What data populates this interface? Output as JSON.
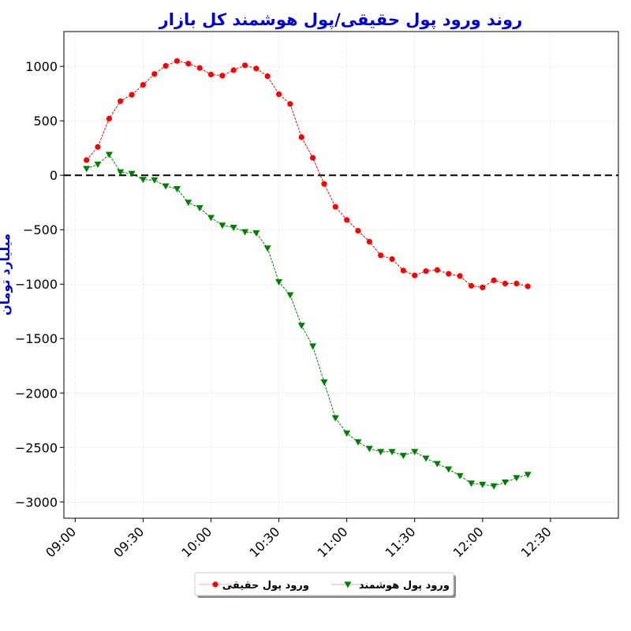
{
  "chart_data": {
    "type": "line",
    "title": "روند ورود پول حقیقی/پول هوشمند کل بازار",
    "xlabel": "",
    "ylabel": "میلیارد تومان",
    "x_start": "09:05",
    "x_step_minutes": 5,
    "xlim": [
      "08:55",
      "13:00"
    ],
    "ylim": [
      -3150,
      1320
    ],
    "x_ticks": [
      "09:00",
      "09:30",
      "10:00",
      "10:30",
      "11:00",
      "11:30",
      "12:00",
      "12:30"
    ],
    "y_ticks": [
      1000,
      500,
      0,
      -500,
      -1000,
      -1500,
      -2000,
      -2500,
      -3000
    ],
    "y_tick_labels": [
      "1000",
      "500",
      "0",
      "−500",
      "−1000",
      "−1500",
      "−2000",
      "−2500",
      "−3000"
    ],
    "grid": true,
    "zero_line": {
      "value": 0,
      "style": "dashed",
      "color": "#000000"
    },
    "legend_position": "bottom-center",
    "series": [
      {
        "name": "ورود پول حقیقی",
        "color": "#ff0000",
        "marker": "circle",
        "values": [
          140,
          260,
          520,
          680,
          740,
          830,
          930,
          1005,
          1050,
          1025,
          985,
          925,
          915,
          965,
          1010,
          980,
          910,
          745,
          655,
          350,
          160,
          -80,
          -290,
          -410,
          -510,
          -610,
          -735,
          -770,
          -875,
          -920,
          -880,
          -870,
          -905,
          -925,
          -1015,
          -1030,
          -965,
          -995,
          -995,
          -1020
        ]
      },
      {
        "name": "ورود پول هوشمند",
        "color": "#008000",
        "marker": "triangle-down",
        "values": [
          60,
          100,
          190,
          30,
          15,
          -40,
          -45,
          -100,
          -125,
          -250,
          -300,
          -390,
          -460,
          -480,
          -520,
          -530,
          -670,
          -980,
          -1100,
          -1380,
          -1570,
          -1900,
          -2230,
          -2370,
          -2450,
          -2510,
          -2540,
          -2540,
          -2575,
          -2540,
          -2600,
          -2650,
          -2700,
          -2760,
          -2830,
          -2840,
          -2855,
          -2820,
          -2780,
          -2750
        ]
      }
    ]
  },
  "legend": {
    "items": [
      "ورود پول هوشمند",
      "ورود پول حقیقی"
    ]
  }
}
